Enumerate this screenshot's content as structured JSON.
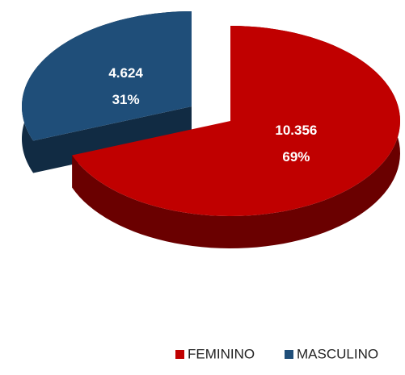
{
  "chart_data": {
    "type": "pie3d",
    "categories": [
      "FEMININO",
      "MASCULINO"
    ],
    "values": [
      10356,
      4624
    ],
    "value_labels": [
      "10.356",
      "4.624"
    ],
    "percent_labels": [
      "69%",
      "31%"
    ],
    "colors": [
      "#c00000",
      "#1f4e79"
    ],
    "legend": "bottom"
  }
}
